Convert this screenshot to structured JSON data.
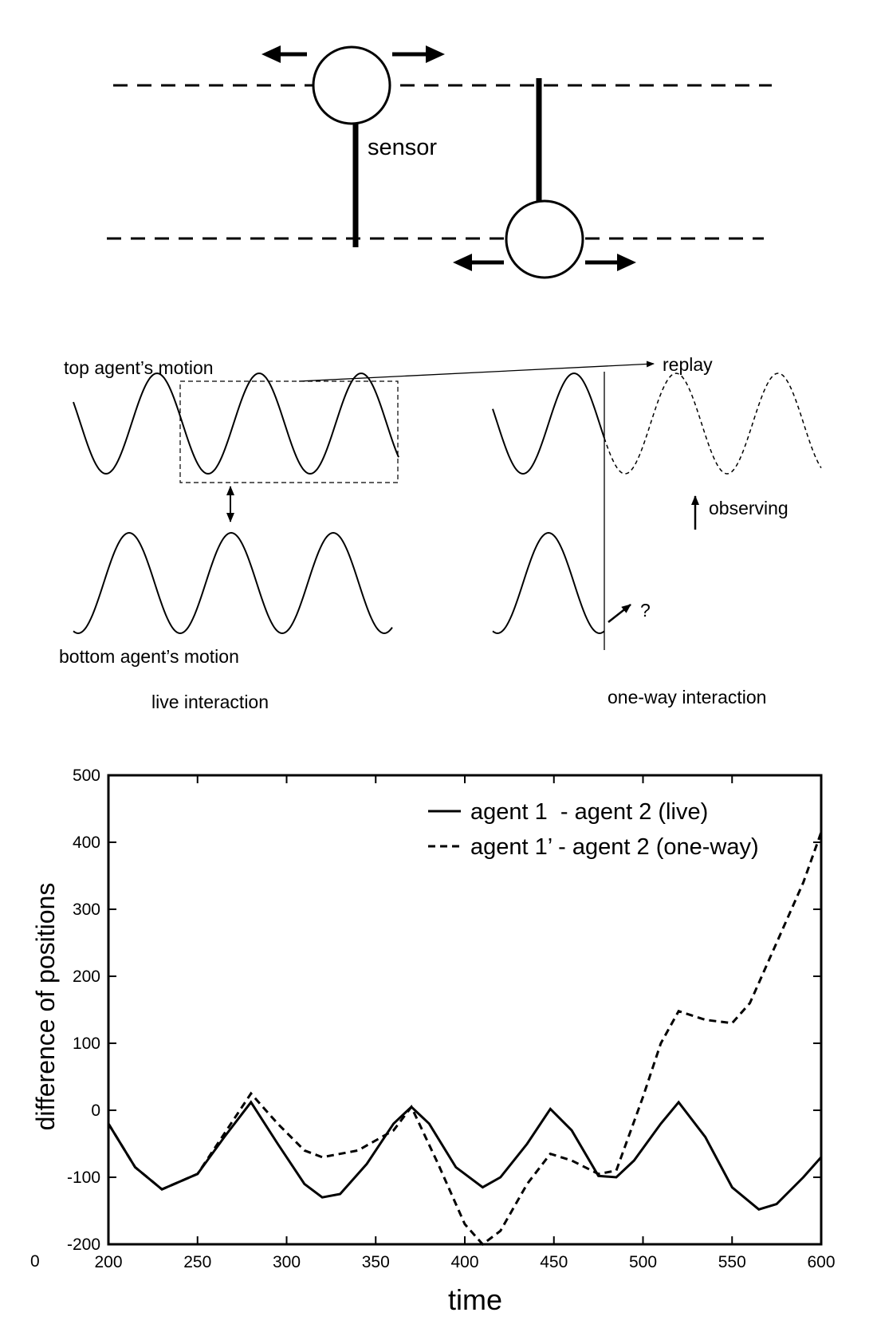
{
  "diagram": {
    "sensor_label": "sensor",
    "top_motion_label": "top agent’s motion",
    "bottom_motion_label": "bottom agent’s motion",
    "replay_label": "replay",
    "observing_label": "observing",
    "question_label": "?",
    "live_caption": "live interaction",
    "oneway_caption": "one-way interaction"
  },
  "chart_data": {
    "type": "line",
    "title": "",
    "xlabel": "time",
    "ylabel": "difference of positions",
    "xlim": [
      200,
      600
    ],
    "ylim": [
      -200,
      500
    ],
    "xticks": [
      "200",
      "250",
      "300",
      "350",
      "400",
      "450",
      "500",
      "550",
      "600"
    ],
    "yticks": [
      "500",
      "400",
      "300",
      "200",
      "100",
      "0",
      "-100",
      "-200"
    ],
    "stray_label": "0",
    "grid": false,
    "legend_position": "top-right",
    "series": [
      {
        "name": "agent 1  - agent 2 (live)",
        "style": "solid",
        "x": [
          200,
          215,
          230,
          250,
          265,
          280,
          295,
          310,
          320,
          330,
          345,
          360,
          370,
          380,
          395,
          410,
          420,
          435,
          448,
          460,
          475,
          485,
          495,
          510,
          520,
          535,
          550,
          565,
          575,
          590,
          600
        ],
        "y": [
          -20,
          -85,
          -118,
          -95,
          -40,
          12,
          -50,
          -110,
          -130,
          -125,
          -80,
          -20,
          5,
          -20,
          -85,
          -115,
          -100,
          -50,
          2,
          -30,
          -98,
          -100,
          -75,
          -20,
          12,
          -40,
          -115,
          -148,
          -140,
          -100,
          -70
        ]
      },
      {
        "name": "agent 1’ - agent 2 (one-way)",
        "style": "dashed",
        "x": [
          200,
          215,
          230,
          250,
          265,
          280,
          295,
          310,
          320,
          340,
          360,
          370,
          385,
          400,
          410,
          420,
          435,
          448,
          460,
          475,
          485,
          500,
          510,
          520,
          535,
          550,
          560,
          575,
          590,
          600
        ],
        "y": [
          -20,
          -85,
          -118,
          -95,
          -35,
          25,
          -20,
          -60,
          -70,
          -60,
          -30,
          5,
          -80,
          -170,
          -200,
          -180,
          -110,
          -65,
          -75,
          -95,
          -90,
          20,
          100,
          148,
          135,
          130,
          160,
          250,
          340,
          415
        ]
      }
    ]
  }
}
